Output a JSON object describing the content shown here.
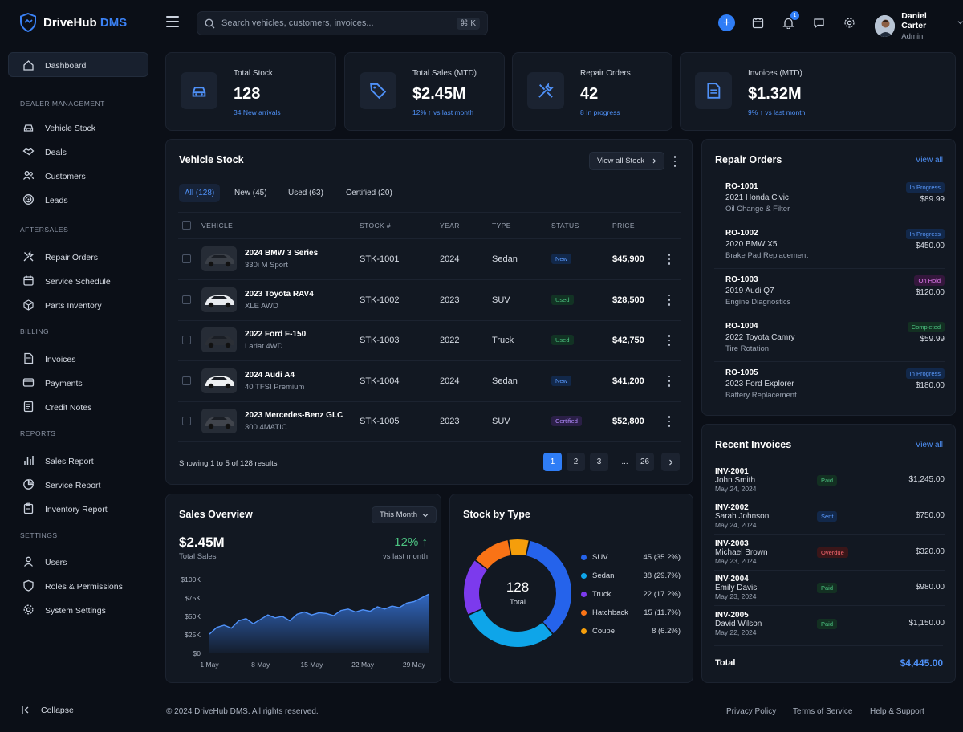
{
  "brand": {
    "name": "DriveHub",
    "suffix": "DMS"
  },
  "search": {
    "placeholder": "Search vehicles, customers, invoices...",
    "shortcut": "⌘ K"
  },
  "header": {
    "notifications_count": "1"
  },
  "user": {
    "name": "Daniel Carter",
    "role": "Admin"
  },
  "sidebar": {
    "dashboard": "Dashboard",
    "sections": [
      {
        "title": "DEALER MANAGEMENT",
        "items": [
          {
            "label": "Vehicle Stock",
            "icon": "car-icon"
          },
          {
            "label": "Deals",
            "icon": "handshake-icon"
          },
          {
            "label": "Customers",
            "icon": "users-icon"
          },
          {
            "label": "Leads",
            "icon": "target-icon"
          }
        ]
      },
      {
        "title": "AFTERSALES",
        "items": [
          {
            "label": "Repair Orders",
            "icon": "tools-icon"
          },
          {
            "label": "Service Schedule",
            "icon": "calendar-icon"
          },
          {
            "label": "Parts Inventory",
            "icon": "box-icon"
          }
        ]
      },
      {
        "title": "BILLING",
        "items": [
          {
            "label": "Invoices",
            "icon": "document-icon"
          },
          {
            "label": "Payments",
            "icon": "card-icon"
          },
          {
            "label": "Credit Notes",
            "icon": "note-icon"
          }
        ]
      },
      {
        "title": "REPORTS",
        "items": [
          {
            "label": "Sales Report",
            "icon": "bar-chart-icon"
          },
          {
            "label": "Service Report",
            "icon": "pie-chart-icon"
          },
          {
            "label": "Inventory Report",
            "icon": "clipboard-icon"
          }
        ]
      },
      {
        "title": "SETTINGS",
        "items": [
          {
            "label": "Users",
            "icon": "user-icon"
          },
          {
            "label": "Roles & Permissions",
            "icon": "shield-icon"
          },
          {
            "label": "System Settings",
            "icon": "gear-icon"
          }
        ]
      }
    ],
    "collapse": "Collapse"
  },
  "stats": [
    {
      "label": "Total Stock",
      "value": "128",
      "sub": "34 New arrivals",
      "icon": "car-icon"
    },
    {
      "label": "Total Sales (MTD)",
      "value": "$2.45M",
      "sub": "12% ↑  vs last month",
      "icon": "tag-icon"
    },
    {
      "label": "Repair Orders",
      "value": "42",
      "sub": "8 In progress",
      "icon": "tools-icon"
    },
    {
      "label": "Invoices (MTD)",
      "value": "$1.32M",
      "sub": "9% ↑  vs last month",
      "icon": "document-icon"
    }
  ],
  "vehicle_stock": {
    "title": "Vehicle Stock",
    "view_all": "View all Stock",
    "tabs": [
      "All (128)",
      "New (45)",
      "Used (63)",
      "Certified (20)"
    ],
    "columns": [
      "VEHICLE",
      "STOCK #",
      "YEAR",
      "TYPE",
      "STATUS",
      "PRICE"
    ],
    "rows": [
      {
        "name": "2024 BMW 3 Series",
        "trim": "330i M Sport",
        "stock": "STK-1001",
        "year": "2024",
        "type": "Sedan",
        "status": "New",
        "price": "$45,900"
      },
      {
        "name": "2023 Toyota RAV4",
        "trim": "XLE AWD",
        "stock": "STK-1002",
        "year": "2023",
        "type": "SUV",
        "status": "Used",
        "price": "$28,500"
      },
      {
        "name": "2022 Ford F-150",
        "trim": "Lariat 4WD",
        "stock": "STK-1003",
        "year": "2022",
        "type": "Truck",
        "status": "Used",
        "price": "$42,750"
      },
      {
        "name": "2024 Audi A4",
        "trim": "40 TFSI Premium",
        "stock": "STK-1004",
        "year": "2024",
        "type": "Sedan",
        "status": "New",
        "price": "$41,200"
      },
      {
        "name": "2023 Mercedes-Benz GLC",
        "trim": "300 4MATIC",
        "stock": "STK-1005",
        "year": "2023",
        "type": "SUV",
        "status": "Certified",
        "price": "$52,800"
      }
    ],
    "showing": "Showing 1 to 5 of 128 results",
    "pages": [
      "1",
      "2",
      "3",
      "...",
      "26"
    ]
  },
  "repair_orders": {
    "title": "Repair Orders",
    "view_all": "View all",
    "items": [
      {
        "id": "RO-1001",
        "car": "2021 Honda Civic",
        "job": "Oil Change & Filter",
        "status": "In Progress",
        "amount": "$89.99"
      },
      {
        "id": "RO-1002",
        "car": "2020 BMW X5",
        "job": "Brake Pad Replacement",
        "status": "In Progress",
        "amount": "$450.00"
      },
      {
        "id": "RO-1003",
        "car": "2019 Audi Q7",
        "job": "Engine Diagnostics",
        "status": "On Hold",
        "amount": "$120.00"
      },
      {
        "id": "RO-1004",
        "car": "2022 Toyota Camry",
        "job": "Tire Rotation",
        "status": "Completed",
        "amount": "$59.99"
      },
      {
        "id": "RO-1005",
        "car": "2023 Ford Explorer",
        "job": "Battery Replacement",
        "status": "In Progress",
        "amount": "$180.00"
      }
    ]
  },
  "invoices": {
    "title": "Recent Invoices",
    "view_all": "View all",
    "items": [
      {
        "id": "INV-2001",
        "name": "John Smith",
        "date": "May 24, 2024",
        "status": "Paid",
        "amount": "$1,245.00"
      },
      {
        "id": "INV-2002",
        "name": "Sarah Johnson",
        "date": "May 24, 2024",
        "status": "Sent",
        "amount": "$750.00"
      },
      {
        "id": "INV-2003",
        "name": "Michael Brown",
        "date": "May 23, 2024",
        "status": "Overdue",
        "amount": "$320.00"
      },
      {
        "id": "INV-2004",
        "name": "Emily Davis",
        "date": "May 23, 2024",
        "status": "Paid",
        "amount": "$980.00"
      },
      {
        "id": "INV-2005",
        "name": "David Wilson",
        "date": "May 22, 2024",
        "status": "Paid",
        "amount": "$1,150.00"
      }
    ],
    "total_label": "Total",
    "total": "$4,445.00"
  },
  "sales_overview": {
    "title": "Sales Overview",
    "period": "This Month",
    "value": "$2.45M",
    "value_label": "Total Sales",
    "change": "12% ↑",
    "change_label": "vs last month"
  },
  "stock_by_type": {
    "title": "Stock by Type",
    "center_value": "128",
    "center_label": "Total"
  },
  "chart_data": [
    {
      "type": "area",
      "title": "Sales Overview",
      "yticks": [
        "$100K",
        "$75K",
        "$50K",
        "$25K",
        "$0"
      ],
      "ylim": [
        0,
        100
      ],
      "xticks": [
        "1 May",
        "8 May",
        "15 May",
        "22 May",
        "29 May"
      ],
      "x": [
        1,
        2,
        3,
        4,
        5,
        6,
        7,
        8,
        9,
        10,
        11,
        12,
        13,
        14,
        15,
        16,
        17,
        18,
        19,
        20,
        21,
        22,
        23,
        24,
        25,
        26,
        27,
        28,
        29,
        30,
        31
      ],
      "values": [
        26,
        35,
        38,
        34,
        44,
        47,
        40,
        46,
        52,
        48,
        50,
        44,
        53,
        56,
        52,
        55,
        54,
        51,
        58,
        60,
        56,
        59,
        57,
        63,
        60,
        64,
        62,
        68,
        70,
        75,
        80
      ],
      "color": "#3b82f6"
    },
    {
      "type": "pie",
      "title": "Stock by Type",
      "categories": [
        "SUV",
        "Sedan",
        "Truck",
        "Hatchback",
        "Coupe"
      ],
      "values": [
        45,
        38,
        22,
        15,
        8
      ],
      "labels": [
        "45 (35.2%)",
        "38 (29.7%)",
        "22 (17.2%)",
        "15 (11.7%)",
        "8 (6.2%)"
      ],
      "colors": [
        "#2563eb",
        "#0ea5e9",
        "#7c3aed",
        "#f97316",
        "#f59e0b"
      ]
    }
  ],
  "footer": {
    "copyright": "© 2024 DriveHub DMS. All rights reserved.",
    "links": [
      "Privacy Policy",
      "Terms of Service",
      "Help & Support"
    ]
  }
}
